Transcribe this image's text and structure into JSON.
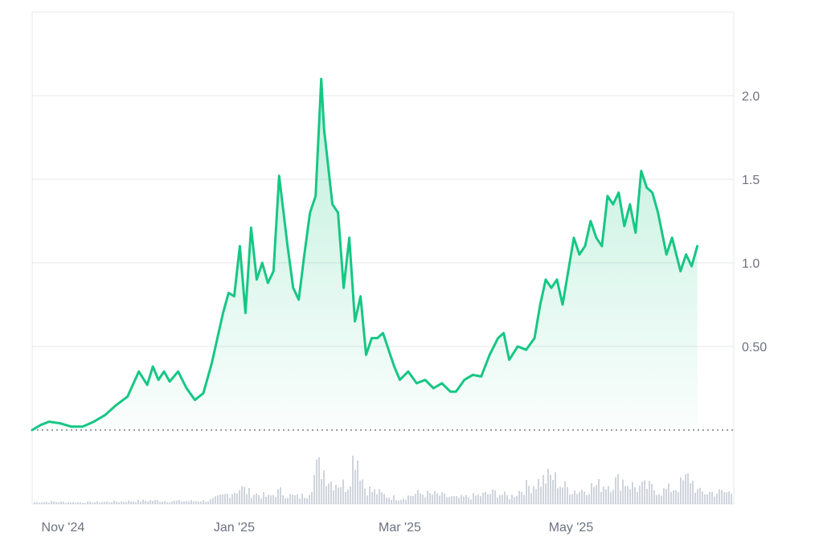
{
  "colors": {
    "line": "#16c784",
    "area_top": "#16c784",
    "grid": "#e5e7eb",
    "baseline_dots": "#7a7f87",
    "volume": "#cfd4dc",
    "tick_text": "#6b7280",
    "frame": "#e5e7eb"
  },
  "chart_data": {
    "type": "area",
    "title": "",
    "xlabel": "",
    "ylabel": "",
    "ylim": [
      0.0,
      2.5
    ],
    "y_ticks": [
      0.5,
      1.0,
      1.5,
      2.0
    ],
    "y_tick_labels": [
      "0.50",
      "1.0",
      "1.5",
      "2.0"
    ],
    "x_range": [
      "2024-10-21",
      "2025-06-28"
    ],
    "x_ticks": [
      "2024-11-01",
      "2025-01-01",
      "2025-03-01",
      "2025-05-01"
    ],
    "x_tick_labels": [
      "Nov '24",
      "Jan '25",
      "Mar '25",
      "May '25"
    ],
    "grid": true,
    "y_axis_position": "right",
    "baseline_value": 0.0,
    "series": [
      {
        "kind": "price-line",
        "points": [
          [
            "2024-10-21",
            0.0
          ],
          [
            "2024-10-24",
            0.03
          ],
          [
            "2024-10-27",
            0.05
          ],
          [
            "2024-10-31",
            0.04
          ],
          [
            "2024-11-04",
            0.02
          ],
          [
            "2024-11-08",
            0.02
          ],
          [
            "2024-11-12",
            0.05
          ],
          [
            "2024-11-16",
            0.09
          ],
          [
            "2024-11-20",
            0.15
          ],
          [
            "2024-11-24",
            0.2
          ],
          [
            "2024-11-28",
            0.35
          ],
          [
            "2024-12-01",
            0.27
          ],
          [
            "2024-12-03",
            0.38
          ],
          [
            "2024-12-05",
            0.3
          ],
          [
            "2024-12-07",
            0.35
          ],
          [
            "2024-12-09",
            0.29
          ],
          [
            "2024-12-12",
            0.35
          ],
          [
            "2024-12-15",
            0.25
          ],
          [
            "2024-12-18",
            0.18
          ],
          [
            "2024-12-21",
            0.22
          ],
          [
            "2024-12-24",
            0.4
          ],
          [
            "2024-12-26",
            0.55
          ],
          [
            "2024-12-28",
            0.7
          ],
          [
            "2024-12-30",
            0.82
          ],
          [
            "2025-01-01",
            0.8
          ],
          [
            "2025-01-03",
            1.1
          ],
          [
            "2025-01-05",
            0.7
          ],
          [
            "2025-01-07",
            1.21
          ],
          [
            "2025-01-09",
            0.9
          ],
          [
            "2025-01-11",
            1.0
          ],
          [
            "2025-01-13",
            0.88
          ],
          [
            "2025-01-15",
            0.95
          ],
          [
            "2025-01-17",
            1.52
          ],
          [
            "2025-01-20",
            1.1
          ],
          [
            "2025-01-22",
            0.85
          ],
          [
            "2025-01-24",
            0.78
          ],
          [
            "2025-01-26",
            1.05
          ],
          [
            "2025-01-28",
            1.3
          ],
          [
            "2025-01-30",
            1.4
          ],
          [
            "2025-02-01",
            2.1
          ],
          [
            "2025-02-02",
            1.8
          ],
          [
            "2025-02-05",
            1.35
          ],
          [
            "2025-02-07",
            1.3
          ],
          [
            "2025-02-09",
            0.85
          ],
          [
            "2025-02-11",
            1.15
          ],
          [
            "2025-02-13",
            0.65
          ],
          [
            "2025-02-15",
            0.8
          ],
          [
            "2025-02-17",
            0.45
          ],
          [
            "2025-02-19",
            0.55
          ],
          [
            "2025-02-21",
            0.55
          ],
          [
            "2025-02-23",
            0.58
          ],
          [
            "2025-02-25",
            0.48
          ],
          [
            "2025-02-27",
            0.38
          ],
          [
            "2025-03-01",
            0.3
          ],
          [
            "2025-03-04",
            0.35
          ],
          [
            "2025-03-07",
            0.28
          ],
          [
            "2025-03-10",
            0.3
          ],
          [
            "2025-03-13",
            0.25
          ],
          [
            "2025-03-16",
            0.28
          ],
          [
            "2025-03-19",
            0.23
          ],
          [
            "2025-03-21",
            0.23
          ],
          [
            "2025-03-24",
            0.3
          ],
          [
            "2025-03-27",
            0.33
          ],
          [
            "2025-03-30",
            0.32
          ],
          [
            "2025-04-02",
            0.45
          ],
          [
            "2025-04-05",
            0.55
          ],
          [
            "2025-04-07",
            0.58
          ],
          [
            "2025-04-09",
            0.42
          ],
          [
            "2025-04-12",
            0.5
          ],
          [
            "2025-04-15",
            0.48
          ],
          [
            "2025-04-18",
            0.55
          ],
          [
            "2025-04-20",
            0.75
          ],
          [
            "2025-04-22",
            0.9
          ],
          [
            "2025-04-24",
            0.85
          ],
          [
            "2025-04-26",
            0.9
          ],
          [
            "2025-04-28",
            0.75
          ],
          [
            "2025-04-30",
            0.95
          ],
          [
            "2025-05-02",
            1.15
          ],
          [
            "2025-05-04",
            1.05
          ],
          [
            "2025-05-06",
            1.1
          ],
          [
            "2025-05-08",
            1.25
          ],
          [
            "2025-05-10",
            1.15
          ],
          [
            "2025-05-12",
            1.1
          ],
          [
            "2025-05-14",
            1.4
          ],
          [
            "2025-05-16",
            1.35
          ],
          [
            "2025-05-18",
            1.42
          ],
          [
            "2025-05-20",
            1.22
          ],
          [
            "2025-05-22",
            1.35
          ],
          [
            "2025-05-24",
            1.18
          ],
          [
            "2025-05-26",
            1.55
          ],
          [
            "2025-05-28",
            1.45
          ],
          [
            "2025-05-30",
            1.42
          ],
          [
            "2025-06-01",
            1.3
          ],
          [
            "2025-06-04",
            1.05
          ],
          [
            "2025-06-06",
            1.15
          ],
          [
            "2025-06-09",
            0.95
          ],
          [
            "2025-06-11",
            1.05
          ],
          [
            "2025-06-13",
            0.98
          ],
          [
            "2025-06-15",
            1.1
          ]
        ]
      },
      {
        "kind": "volume-bars",
        "relative": true,
        "points": [
          [
            "2024-10-21",
            0.03
          ],
          [
            "2024-10-28",
            0.04
          ],
          [
            "2024-11-04",
            0.03
          ],
          [
            "2024-11-11",
            0.03
          ],
          [
            "2024-11-18",
            0.04
          ],
          [
            "2024-11-25",
            0.05
          ],
          [
            "2024-12-02",
            0.06
          ],
          [
            "2024-12-09",
            0.05
          ],
          [
            "2024-12-16",
            0.05
          ],
          [
            "2024-12-23",
            0.06
          ],
          [
            "2024-12-30",
            0.18
          ],
          [
            "2025-01-03",
            0.28
          ],
          [
            "2025-01-06",
            0.2
          ],
          [
            "2025-01-10",
            0.16
          ],
          [
            "2025-01-13",
            0.12
          ],
          [
            "2025-01-17",
            0.22
          ],
          [
            "2025-01-20",
            0.15
          ],
          [
            "2025-01-24",
            0.12
          ],
          [
            "2025-01-27",
            0.18
          ],
          [
            "2025-01-30",
            0.6
          ],
          [
            "2025-02-01",
            0.65
          ],
          [
            "2025-02-04",
            0.4
          ],
          [
            "2025-02-07",
            0.38
          ],
          [
            "2025-02-10",
            0.3
          ],
          [
            "2025-02-13",
            1.0
          ],
          [
            "2025-02-16",
            0.3
          ],
          [
            "2025-02-19",
            0.22
          ],
          [
            "2025-02-22",
            0.18
          ],
          [
            "2025-02-25",
            0.12
          ],
          [
            "2025-03-01",
            0.1
          ],
          [
            "2025-03-07",
            0.18
          ],
          [
            "2025-03-14",
            0.16
          ],
          [
            "2025-03-21",
            0.1
          ],
          [
            "2025-03-28",
            0.14
          ],
          [
            "2025-04-04",
            0.2
          ],
          [
            "2025-04-09",
            0.12
          ],
          [
            "2025-04-14",
            0.28
          ],
          [
            "2025-04-20",
            0.4
          ],
          [
            "2025-04-24",
            0.48
          ],
          [
            "2025-04-28",
            0.3
          ],
          [
            "2025-05-03",
            0.22
          ],
          [
            "2025-05-08",
            0.3
          ],
          [
            "2025-05-14",
            0.35
          ],
          [
            "2025-05-19",
            0.42
          ],
          [
            "2025-05-24",
            0.28
          ],
          [
            "2025-05-28",
            0.3
          ],
          [
            "2025-06-02",
            0.22
          ],
          [
            "2025-06-08",
            0.3
          ],
          [
            "2025-06-12",
            0.48
          ],
          [
            "2025-06-15",
            0.2
          ]
        ]
      }
    ]
  }
}
